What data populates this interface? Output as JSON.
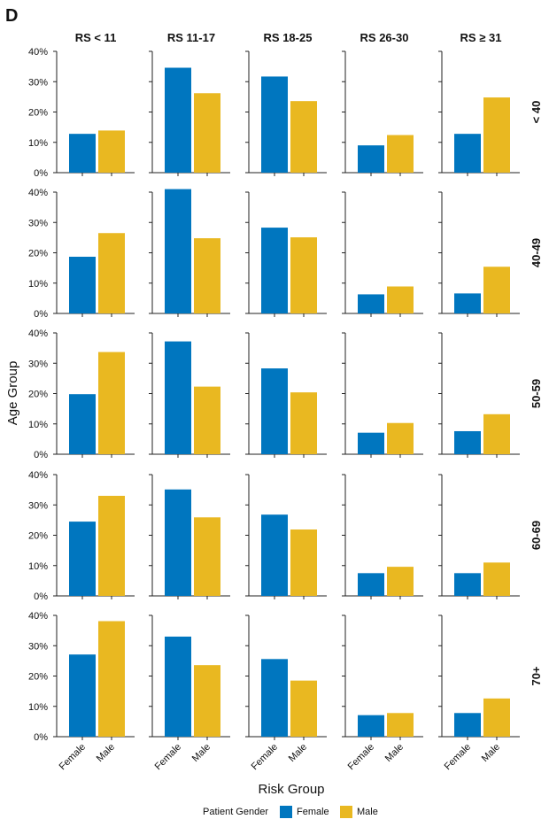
{
  "panel_label": "D",
  "colors": {
    "female": "#0076bf",
    "male": "#e9b821"
  },
  "legend": {
    "title": "Patient Gender",
    "items": [
      "Female",
      "Male"
    ]
  },
  "chart_data": {
    "type": "bar",
    "xlabel": "Risk Group",
    "ylabel": "Age Group",
    "ylim": [
      0,
      40
    ],
    "yticks": [
      "0%",
      "10%",
      "20%",
      "30%",
      "40%"
    ],
    "categories": [
      "Female",
      "Male"
    ],
    "columns": [
      "RS < 11",
      "RS 11-17",
      "RS 18-25",
      "RS 26-30",
      "RS ≥ 31"
    ],
    "rows": [
      "< 40",
      "40-49",
      "50-59",
      "60-69",
      "70+"
    ],
    "facets": [
      {
        "row": "< 40",
        "column": "RS < 11",
        "values": [
          12.8,
          13.9
        ]
      },
      {
        "row": "< 40",
        "column": "RS 11-17",
        "values": [
          34.6,
          26.2
        ]
      },
      {
        "row": "< 40",
        "column": "RS 18-25",
        "values": [
          31.7,
          23.6
        ]
      },
      {
        "row": "< 40",
        "column": "RS 26-30",
        "values": [
          9.0,
          12.4
        ]
      },
      {
        "row": "< 40",
        "column": "RS ≥ 31",
        "values": [
          12.8,
          24.8
        ]
      },
      {
        "row": "40-49",
        "column": "RS < 11",
        "values": [
          18.7,
          26.5
        ]
      },
      {
        "row": "40-49",
        "column": "RS 11-17",
        "values": [
          41.0,
          24.8
        ]
      },
      {
        "row": "40-49",
        "column": "RS 18-25",
        "values": [
          28.3,
          25.1
        ]
      },
      {
        "row": "40-49",
        "column": "RS 26-30",
        "values": [
          6.3,
          8.9
        ]
      },
      {
        "row": "40-49",
        "column": "RS ≥ 31",
        "values": [
          6.6,
          15.4
        ]
      },
      {
        "row": "50-59",
        "column": "RS < 11",
        "values": [
          19.8,
          33.7
        ]
      },
      {
        "row": "50-59",
        "column": "RS 11-17",
        "values": [
          37.2,
          22.3
        ]
      },
      {
        "row": "50-59",
        "column": "RS 18-25",
        "values": [
          28.3,
          20.4
        ]
      },
      {
        "row": "50-59",
        "column": "RS 26-30",
        "values": [
          7.1,
          10.3
        ]
      },
      {
        "row": "50-59",
        "column": "RS ≥ 31",
        "values": [
          7.6,
          13.2
        ]
      },
      {
        "row": "60-69",
        "column": "RS < 11",
        "values": [
          24.5,
          33.0
        ]
      },
      {
        "row": "60-69",
        "column": "RS 11-17",
        "values": [
          35.1,
          25.9
        ]
      },
      {
        "row": "60-69",
        "column": "RS 18-25",
        "values": [
          26.8,
          21.9
        ]
      },
      {
        "row": "60-69",
        "column": "RS 26-30",
        "values": [
          7.5,
          9.6
        ]
      },
      {
        "row": "60-69",
        "column": "RS ≥ 31",
        "values": [
          7.5,
          11.0
        ]
      },
      {
        "row": "70+",
        "column": "RS < 11",
        "values": [
          27.1,
          38.1
        ]
      },
      {
        "row": "70+",
        "column": "RS 11-17",
        "values": [
          33.0,
          23.6
        ]
      },
      {
        "row": "70+",
        "column": "RS 18-25",
        "values": [
          25.6,
          18.5
        ]
      },
      {
        "row": "70+",
        "column": "RS 26-30",
        "values": [
          7.1,
          7.8
        ]
      },
      {
        "row": "70+",
        "column": "RS ≥ 31",
        "values": [
          7.8,
          12.6
        ]
      }
    ]
  }
}
